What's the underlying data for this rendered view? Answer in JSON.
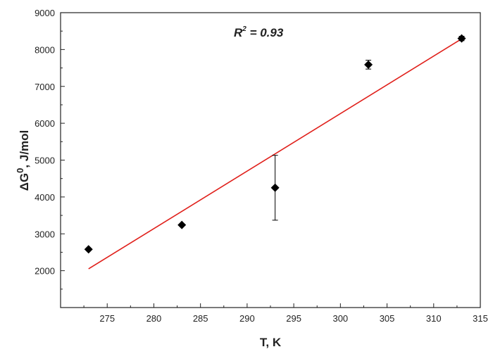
{
  "chart_data": {
    "type": "scatter",
    "xlabel": "T, K",
    "ylabel": "ΔG",
    "ylabel_superscript": "0",
    "ylabel_unit": ", J/mol",
    "xlim": [
      270,
      315
    ],
    "ylim": [
      1000,
      9000
    ],
    "x_ticks": [
      275,
      280,
      285,
      290,
      295,
      300,
      305,
      310,
      315
    ],
    "y_ticks": [
      2000,
      3000,
      4000,
      5000,
      6000,
      7000,
      8000,
      9000
    ],
    "grid": false,
    "annotation": {
      "text_main": "R",
      "text_sup": "2",
      "text_value": " = 0.93"
    },
    "series": [
      {
        "marker": "diamond",
        "color": "#000000",
        "points": [
          {
            "x": 273,
            "y": 2580,
            "err": 0
          },
          {
            "x": 283,
            "y": 3240,
            "err": 0
          },
          {
            "x": 293,
            "y": 4250,
            "err": 880
          },
          {
            "x": 303,
            "y": 7590,
            "err": 120
          },
          {
            "x": 313,
            "y": 8300,
            "err": 60
          }
        ]
      }
    ],
    "fit_line": {
      "color": "#e0201b",
      "x": [
        273,
        313
      ],
      "y": [
        2050,
        8290
      ]
    }
  }
}
